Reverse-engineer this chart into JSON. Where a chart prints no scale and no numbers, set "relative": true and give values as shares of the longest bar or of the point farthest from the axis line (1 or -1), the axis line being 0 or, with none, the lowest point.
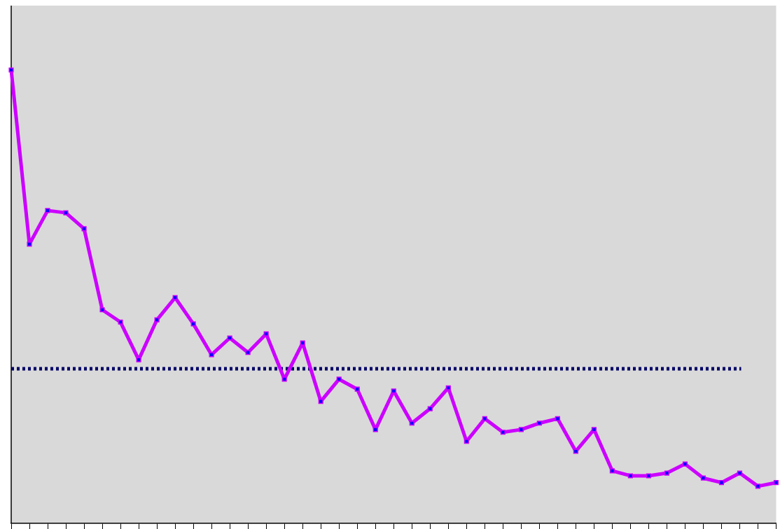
{
  "chart_data": {
    "type": "line",
    "relative": true,
    "categories": [
      null,
      null,
      null,
      null,
      null,
      null,
      null,
      null,
      null,
      null,
      null,
      null,
      null,
      null,
      null,
      null,
      null,
      null,
      null,
      null,
      null,
      null,
      null,
      null,
      null,
      null,
      null,
      null,
      null,
      null,
      null,
      null,
      null,
      null,
      null,
      null,
      null,
      null,
      null,
      null,
      null,
      null,
      null
    ],
    "series": [
      {
        "color": "#cc00ff",
        "values": [
          1.0,
          0.616,
          0.69,
          0.685,
          0.65,
          0.471,
          0.444,
          0.361,
          0.449,
          0.498,
          0.44,
          0.372,
          0.409,
          0.377,
          0.418,
          0.318,
          0.398,
          0.269,
          0.318,
          0.296,
          0.207,
          0.292,
          0.221,
          0.253,
          0.299,
          0.181,
          0.231,
          0.201,
          0.207,
          0.221,
          0.231,
          0.159,
          0.207,
          0.116,
          0.105,
          0.105,
          0.111,
          0.131,
          0.1,
          0.09,
          0.111,
          0.082,
          0.09
        ]
      }
    ],
    "ref_lines": [
      {
        "axis": "y",
        "value": 0.341,
        "color": "#000066",
        "line_style": "dotted"
      }
    ],
    "marker": "square",
    "line_style": "solid",
    "grid": false,
    "legend": false,
    "tick_labels": false
  }
}
